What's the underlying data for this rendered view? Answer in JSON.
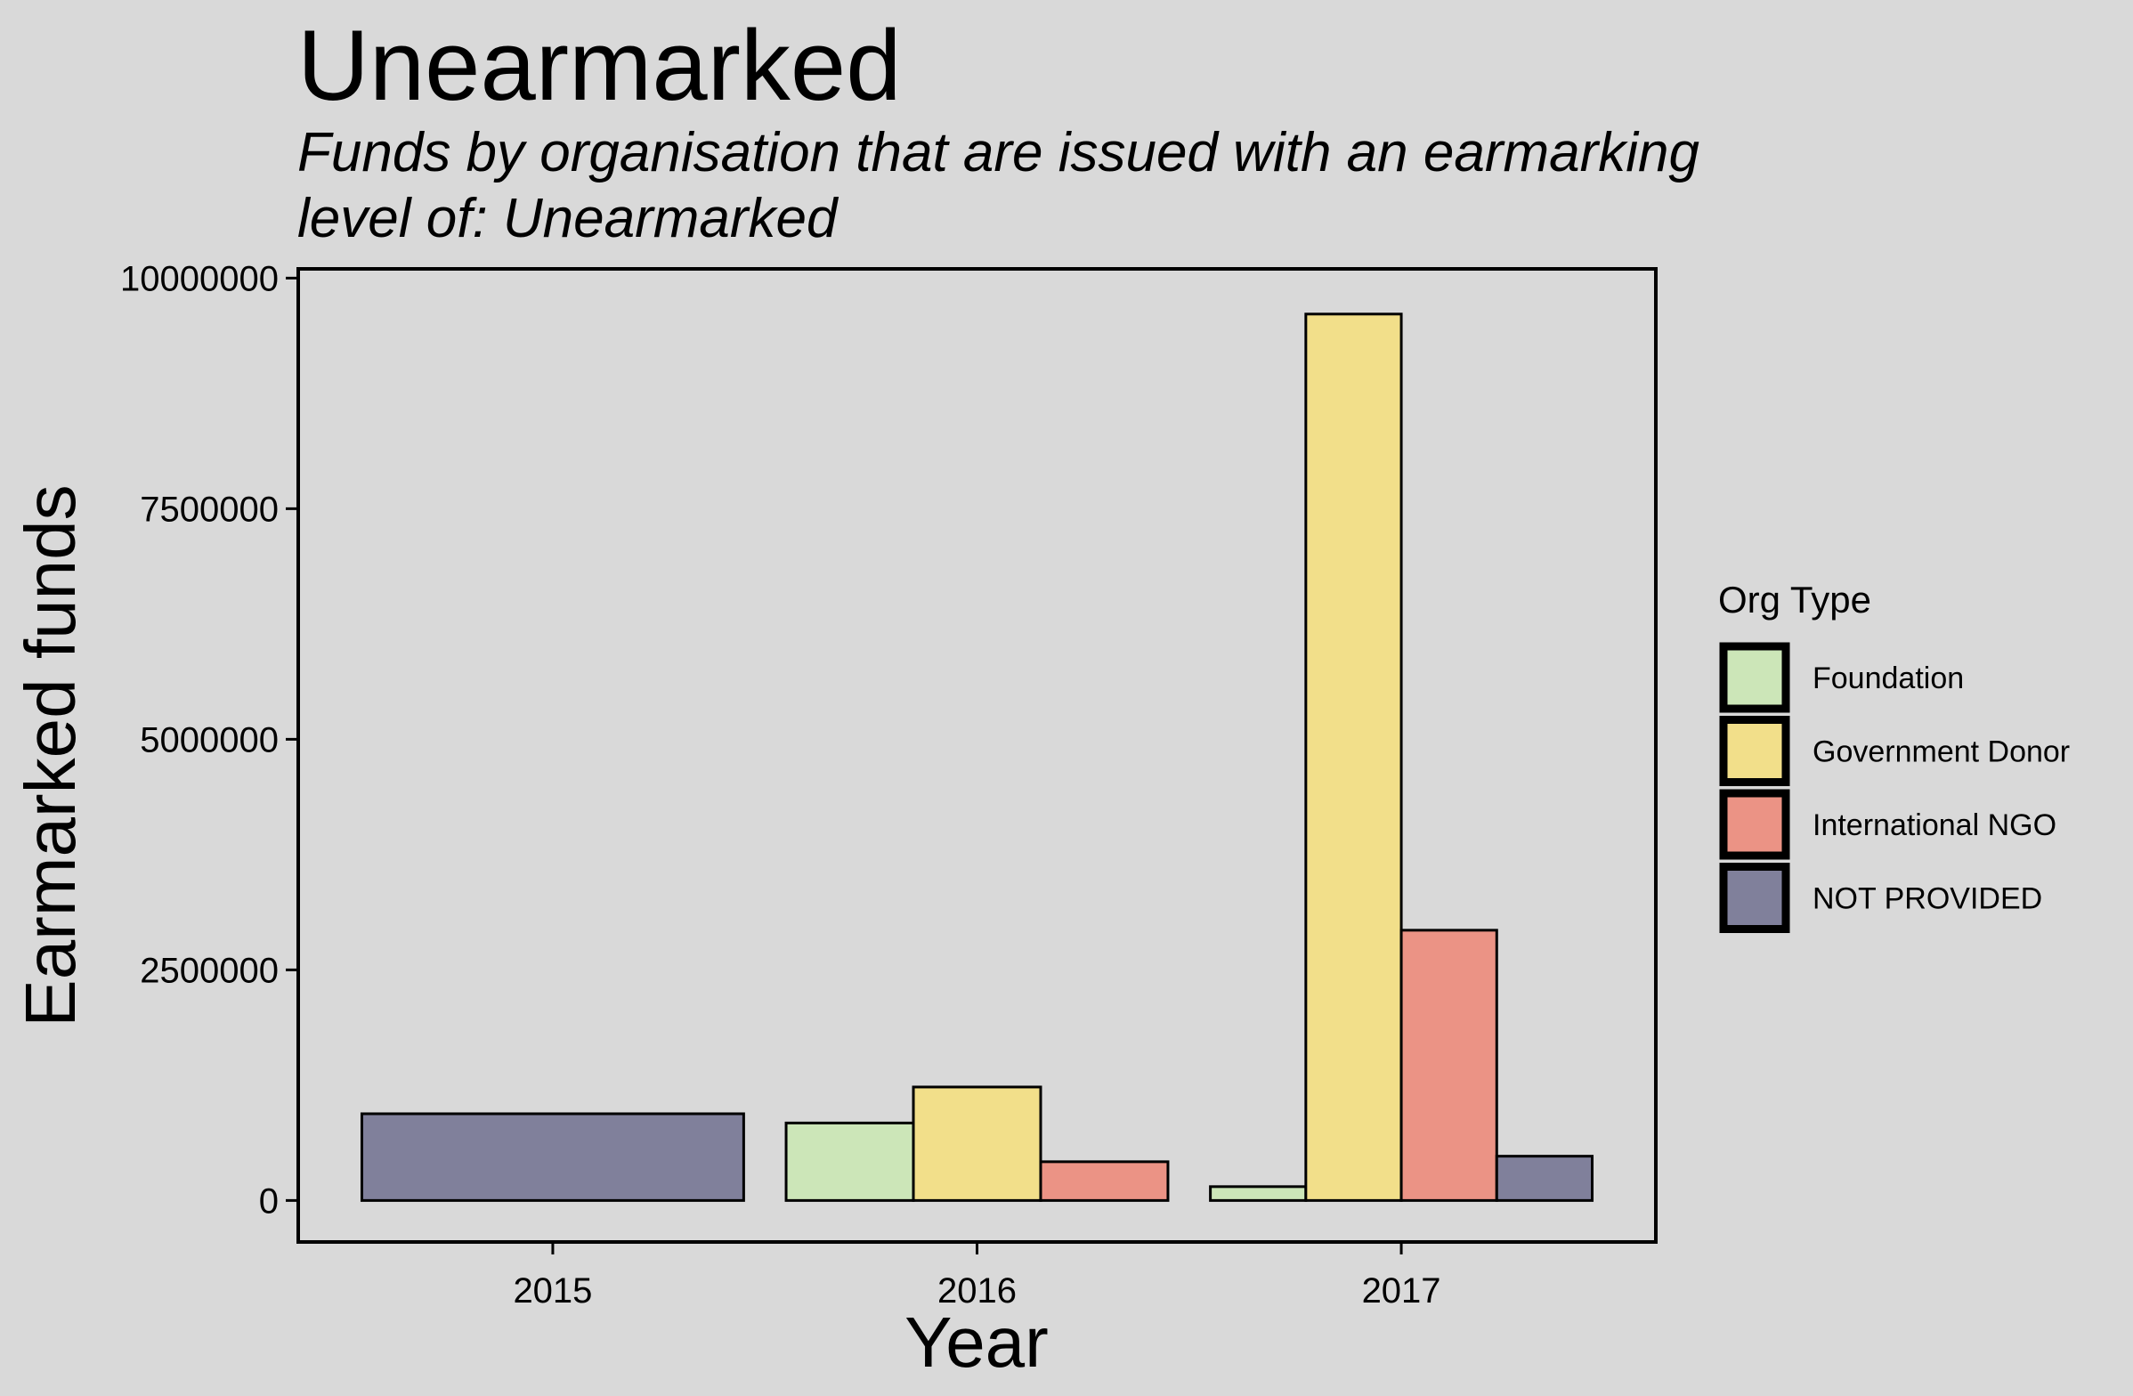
{
  "chart_data": {
    "type": "bar",
    "title": "Unearmarked",
    "subtitle": [
      "Funds by organisation that are issued with an earmarking",
      "level of: Unearmarked"
    ],
    "xlabel": "Year",
    "ylabel": "Earmarked funds",
    "categories": [
      "2015",
      "2016",
      "2017"
    ],
    "ylim": [
      -450000,
      10100000
    ],
    "yticks": [
      0,
      2500000,
      5000000,
      7500000,
      10000000
    ],
    "ytick_labels": [
      "0",
      "2500000",
      "5000000",
      "7500000",
      "10000000"
    ],
    "grid": false,
    "legend": {
      "title": "Org Type",
      "position": "right"
    },
    "series": [
      {
        "name": "Foundation",
        "color": "#cce6b8",
        "values": [
          null,
          840000,
          150000
        ]
      },
      {
        "name": "Government Donor",
        "color": "#f2df8a",
        "values": [
          null,
          1230000,
          9610000
        ]
      },
      {
        "name": "International NGO",
        "color": "#eb9385",
        "values": [
          null,
          420000,
          2930000
        ]
      },
      {
        "name": "NOT PROVIDED",
        "color": "#80809b",
        "values": [
          940000,
          null,
          480000
        ]
      }
    ]
  }
}
